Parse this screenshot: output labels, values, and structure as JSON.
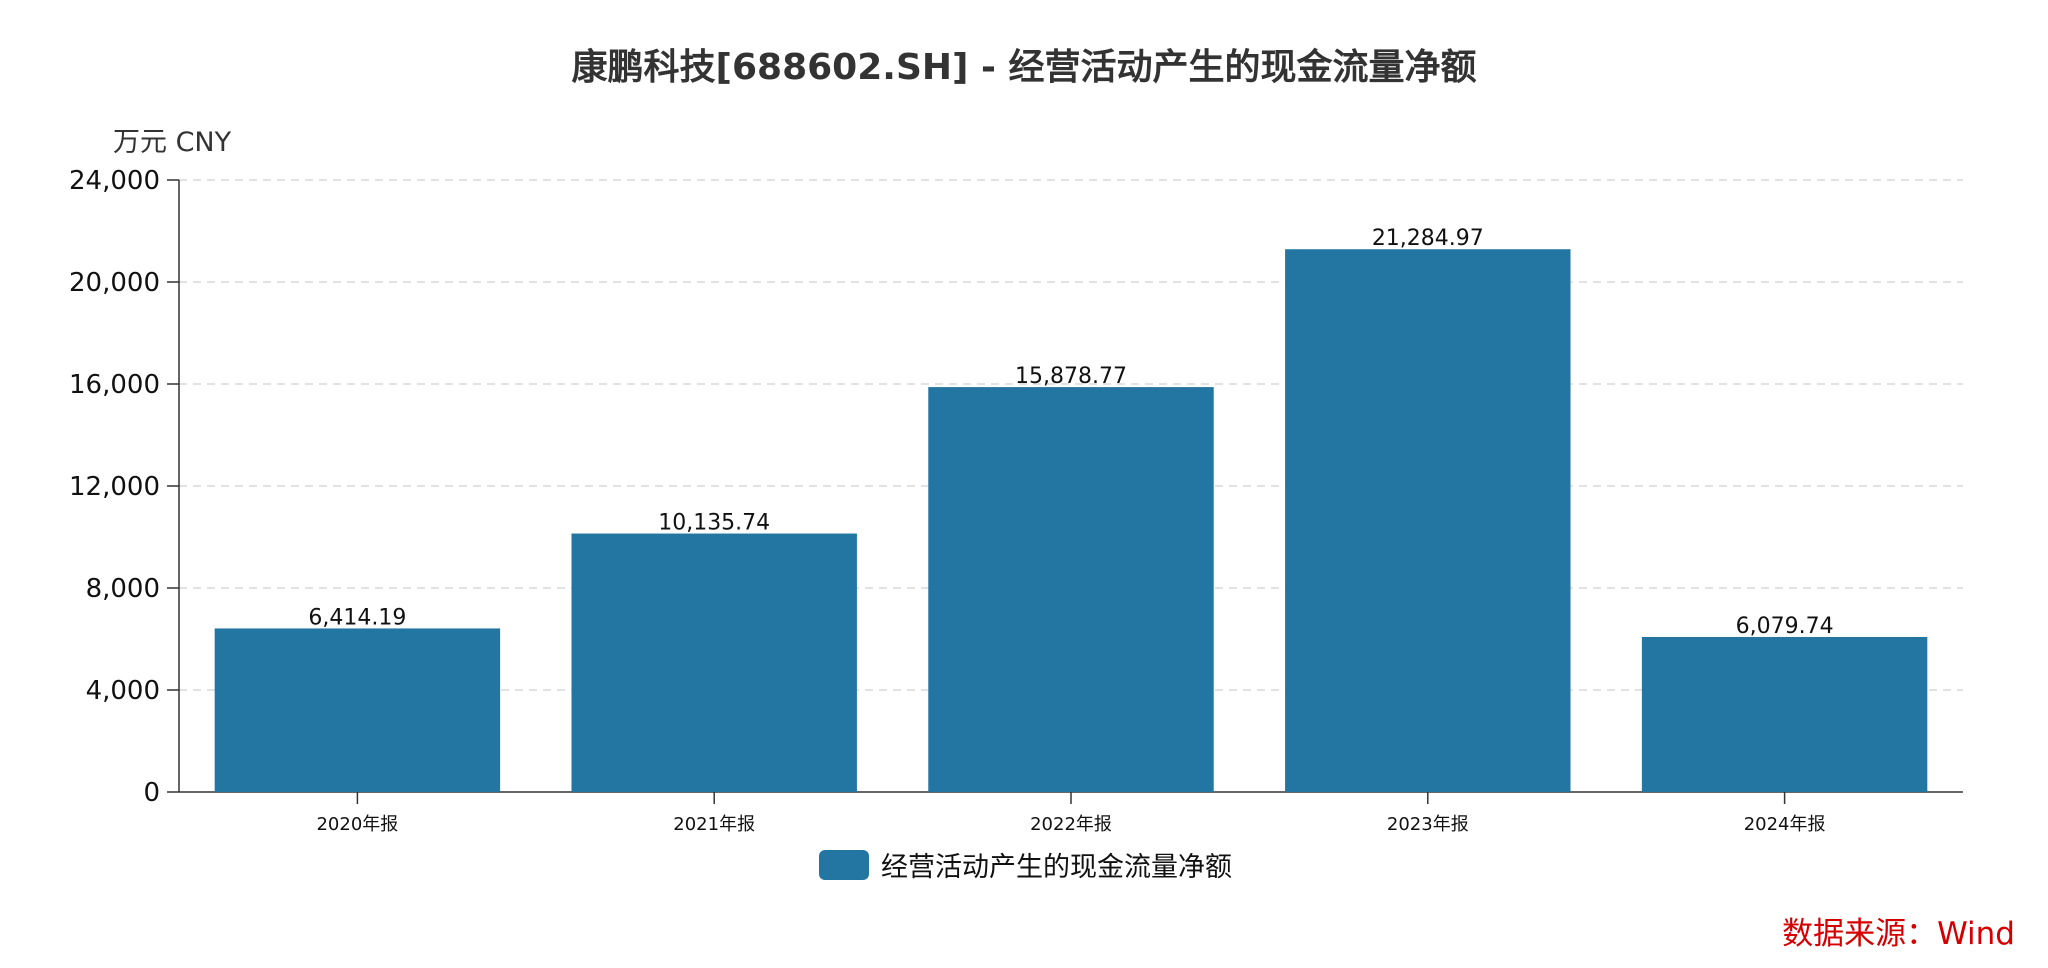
{
  "chart_data": {
    "type": "bar",
    "title": "康鹏科技[688602.SH] - 经营活动产生的现金流量净额",
    "unit_label": "万元  CNY",
    "categories": [
      "2020年报",
      "2021年报",
      "2022年报",
      "2023年报",
      "2024年报"
    ],
    "series": [
      {
        "name": "经营活动产生的现金流量净额",
        "values": [
          6414.19,
          10135.74,
          15878.77,
          21284.97,
          6079.74
        ],
        "value_labels": [
          "6,414.19",
          "10,135.74",
          "15,878.77",
          "21,284.97",
          "6,079.74"
        ],
        "color": "#2476a2"
      }
    ],
    "ylim": [
      0,
      24000
    ],
    "yticks": [
      0,
      4000,
      8000,
      12000,
      16000,
      20000,
      24000
    ],
    "ytick_labels": [
      "0",
      "4,000",
      "8,000",
      "12,000",
      "16,000",
      "20,000",
      "24,000"
    ],
    "grid": true,
    "legend_position": "bottom-center"
  },
  "source": "数据来源：Wind"
}
